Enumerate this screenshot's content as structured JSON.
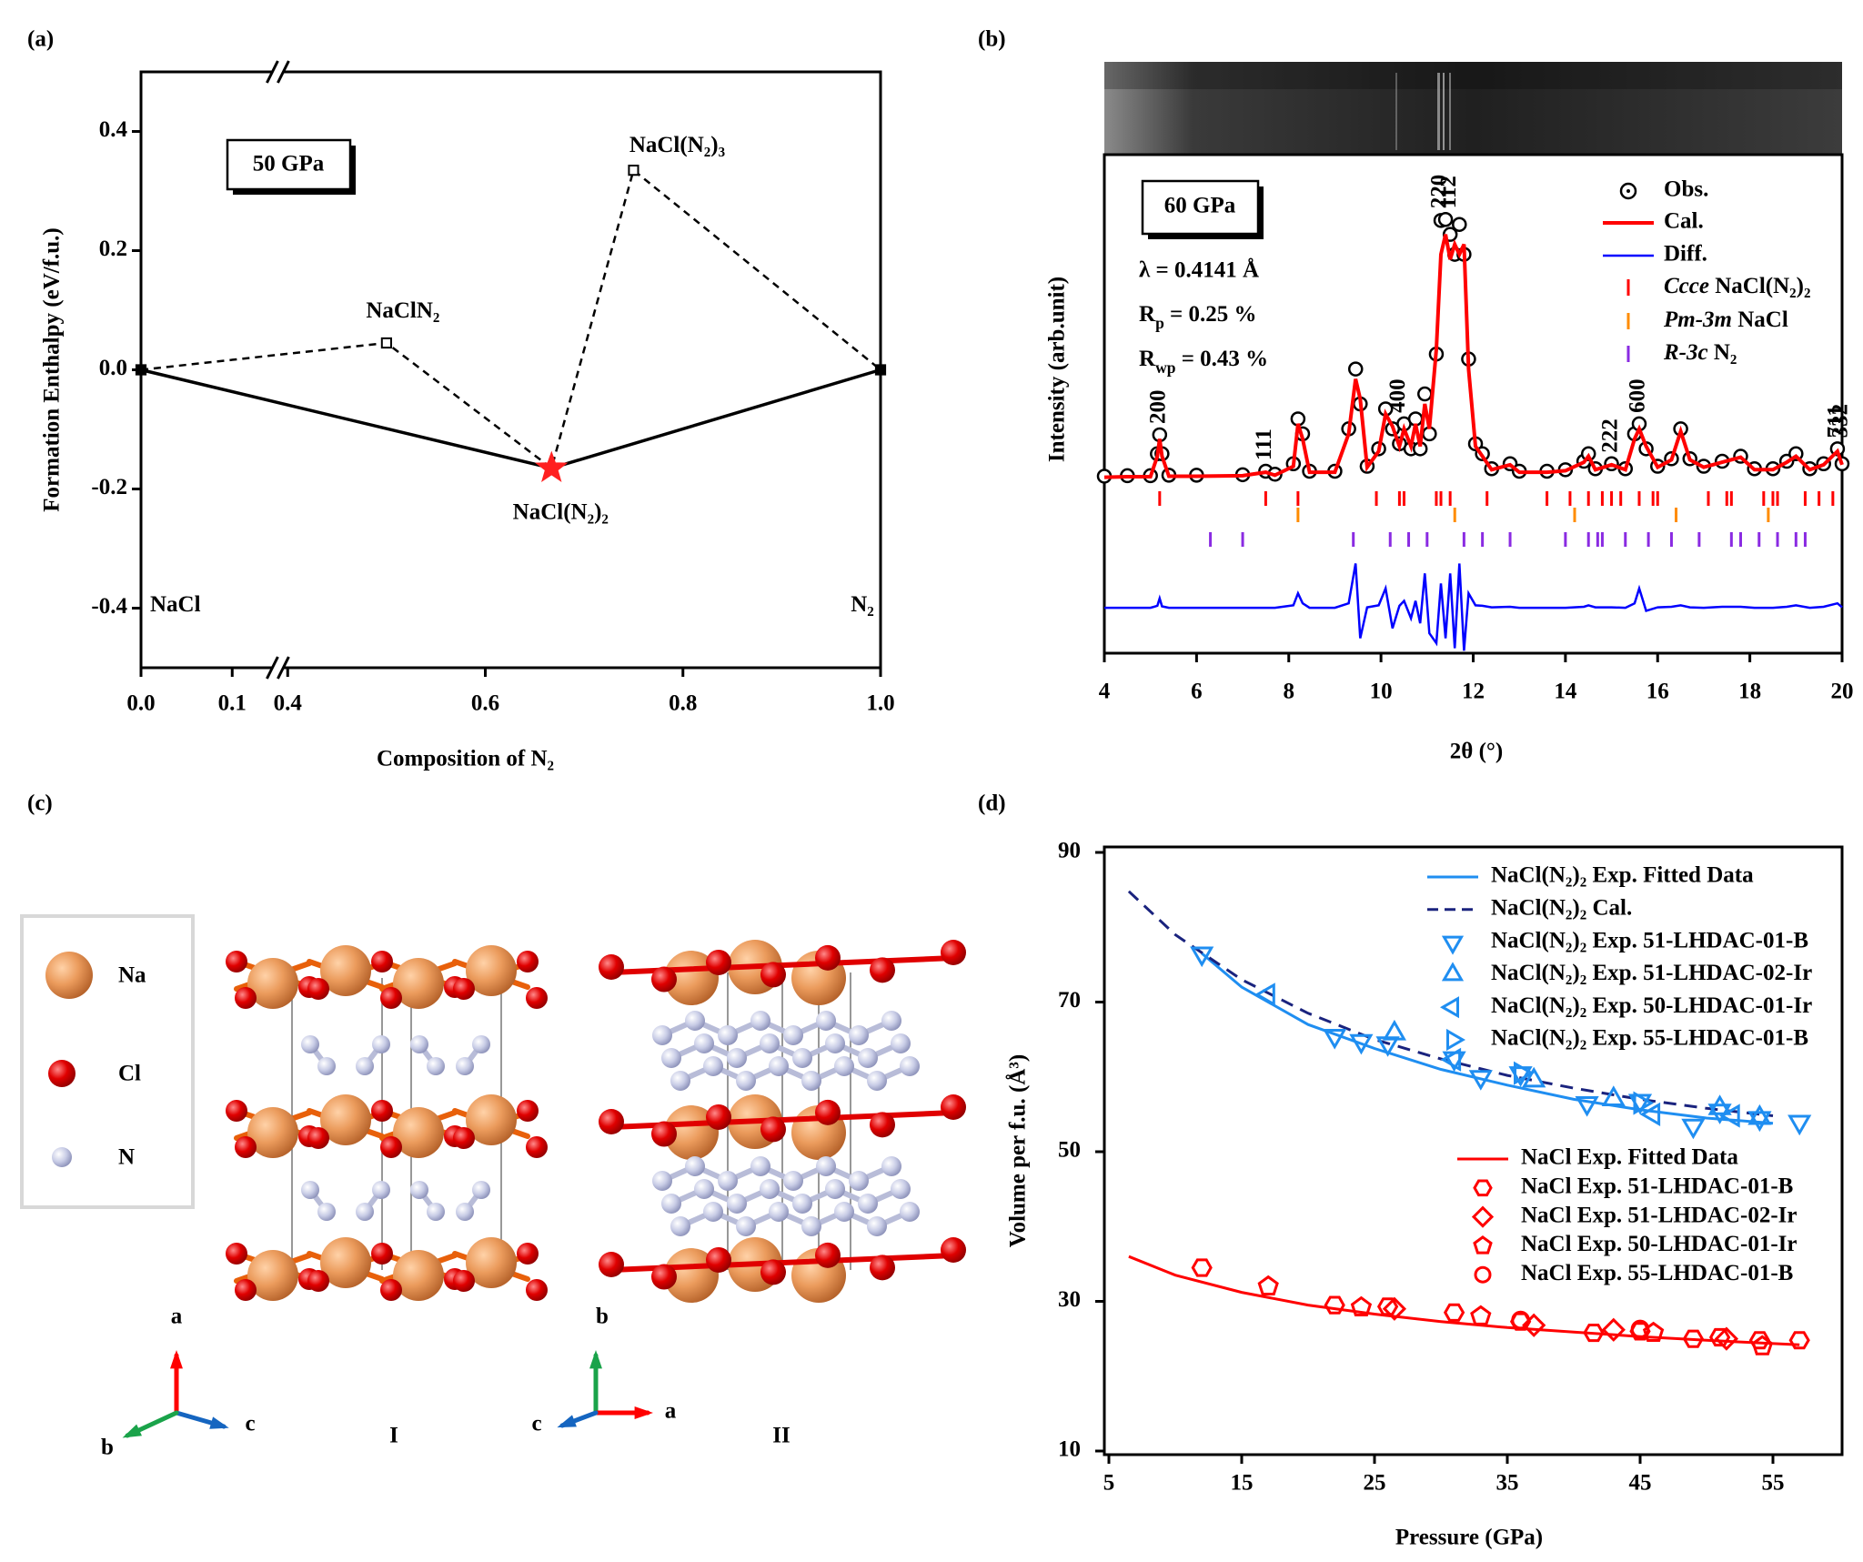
{
  "chart_data": [
    {
      "type": "hull",
      "panel_label": "(a)",
      "xlabel": "Composition of N₂",
      "ylabel": "Formation Enthalpy (eV/f.u.)",
      "xlim": [
        0,
        1
      ],
      "xbreak": [
        0.15,
        0.39
      ],
      "xticks": [
        {
          "value": 0,
          "label": "0.0"
        },
        {
          "value": 0.1,
          "label": "0.1"
        },
        {
          "value": 0.4,
          "label": "0.4"
        },
        {
          "value": 0.6,
          "label": "0.6"
        },
        {
          "value": 0.8,
          "label": "0.8"
        },
        {
          "value": 1,
          "label": "1.0"
        }
      ],
      "ylim": [
        -0.5,
        0.5
      ],
      "yticks": [
        {
          "value": -0.4,
          "label": "-0.4"
        },
        -0.2,
        {
          "value": 0,
          "label": "0.0"
        },
        0.2,
        0.4
      ],
      "annotations": [
        "50 GPa"
      ],
      "series": [
        {
          "color": "#000000",
          "style": "solid",
          "x": [
            0,
            0.667,
            1
          ],
          "values": [
            0,
            -0.165,
            0
          ]
        },
        {
          "color": "#000000",
          "style": "dashed",
          "x": [
            0,
            0.5,
            0.667,
            0.75,
            1
          ],
          "values": [
            0,
            0.045,
            -0.165,
            0.335,
            0
          ]
        }
      ],
      "points": {
        "x": [
          0,
          0.5,
          0.667,
          0.75,
          1
        ],
        "values": [
          0,
          0.045,
          -0.165,
          0.335,
          0
        ],
        "labels": [
          "NaCl",
          "NaClN₂",
          "NaCl(N₂)₂",
          "NaCl(N₂)₃",
          "N₂"
        ],
        "markers": [
          "filled-square",
          "square",
          "star",
          "square",
          "filled-square"
        ],
        "colors": [
          "#000000",
          "#000000",
          "#ff2020",
          "#000000",
          "#000000"
        ]
      }
    },
    {
      "type": "xrd",
      "panel_label": "(b)",
      "xlabel": "2θ (°)",
      "ylabel": "Intensity (arb.unit)",
      "xlim": [
        4,
        20
      ],
      "xticks": [
        4,
        6,
        8,
        10,
        12,
        14,
        16,
        18,
        20
      ],
      "ylim": [
        0,
        100
      ],
      "annotations": [
        "60 GPa",
        "λ = 0.4141 Å",
        "Rp = 0.25 %",
        "Rwp = 0.43 %"
      ],
      "x": [
        4.0,
        4.5,
        5.0,
        5.15,
        5.2,
        5.25,
        5.4,
        6.0,
        7.0,
        7.5,
        7.7,
        8.1,
        8.2,
        8.3,
        8.45,
        9.0,
        9.3,
        9.45,
        9.55,
        9.7,
        9.95,
        10.1,
        10.25,
        10.4,
        10.5,
        10.65,
        10.75,
        10.85,
        10.95,
        11.05,
        11.2,
        11.3,
        11.4,
        11.5,
        11.6,
        11.7,
        11.8,
        11.9,
        12.05,
        12.2,
        12.4,
        12.8,
        13.0,
        13.6,
        14.0,
        14.4,
        14.5,
        14.65,
        15.0,
        15.3,
        15.5,
        15.6,
        15.75,
        16.0,
        16.3,
        16.5,
        16.7,
        17.0,
        17.4,
        17.8,
        18.1,
        18.5,
        18.8,
        19.0,
        19.3,
        19.6,
        19.9,
        20.0
      ],
      "series": [
        {
          "name": "Obs.",
          "color": "#000000",
          "marker": "circle",
          "values": [
            35.5,
            35.6,
            35.6,
            40,
            43.8,
            40,
            35.7,
            35.7,
            35.8,
            36.5,
            35.9,
            38,
            47,
            44,
            36.5,
            36.5,
            45,
            57,
            50,
            37.5,
            41,
            49,
            45,
            42,
            46,
            41,
            47,
            41,
            52,
            44,
            60,
            86.8,
            87,
            84,
            80,
            86,
            80,
            59,
            42,
            40,
            37,
            38,
            36.5,
            36.5,
            36.8,
            38.5,
            40,
            37,
            38,
            37,
            44,
            46,
            41,
            37.5,
            39,
            45,
            39,
            37.5,
            38.5,
            39.5,
            37,
            37,
            38.5,
            40,
            37,
            38,
            41,
            38
          ]
        },
        {
          "name": "Cal.",
          "color": "#ff0000",
          "values": [
            35.3,
            35.4,
            35.4,
            39.5,
            43,
            39.5,
            35.5,
            35.5,
            35.6,
            36.3,
            35.7,
            37.5,
            46,
            43,
            36.3,
            36.3,
            44,
            55,
            51,
            37.3,
            40.5,
            48,
            45.5,
            41.5,
            45,
            41.5,
            46,
            41.5,
            50,
            45,
            61,
            80,
            84,
            79,
            82,
            80,
            82,
            57,
            41.5,
            39.5,
            36.8,
            37.8,
            36.3,
            36.3,
            36.6,
            38.3,
            39.5,
            36.8,
            37.8,
            36.8,
            43,
            45,
            41.5,
            37.3,
            38.8,
            44.5,
            38.8,
            37.3,
            38.3,
            39.3,
            36.8,
            36.8,
            38.3,
            39.5,
            36.8,
            37.8,
            40.5,
            37.8
          ]
        },
        {
          "name": "Diff.",
          "color": "#0000ff",
          "values": [
            9.1,
            9.1,
            9.1,
            9.5,
            11,
            9.4,
            9.1,
            9.1,
            9.1,
            9.1,
            9.1,
            9.6,
            12,
            10,
            9.1,
            9.1,
            10,
            18,
            3,
            9.2,
            9.6,
            13,
            5,
            9.5,
            10.5,
            7,
            10.5,
            6,
            16,
            4,
            2,
            14,
            3,
            16,
            1,
            18,
            0.5,
            12,
            9.6,
            9.5,
            9.2,
            9.3,
            9.1,
            9.1,
            9.1,
            9.3,
            9.6,
            9.2,
            9.2,
            9.1,
            10,
            13,
            8.5,
            9.2,
            9.3,
            9.6,
            9.2,
            9.1,
            9.3,
            9.3,
            9.1,
            9.1,
            9.3,
            9.6,
            9.1,
            9.3,
            10,
            9.2
          ]
        }
      ],
      "reflections": [
        {
          "name": "Ccce NaCl(N₂)₂",
          "color": "#ff0000",
          "positions": [
            5.2,
            7.5,
            8.2,
            9.9,
            10.4,
            10.5,
            11.2,
            11.3,
            11.5,
            12.3,
            13.6,
            14.1,
            14.5,
            14.8,
            15.0,
            15.2,
            15.6,
            15.9,
            16.0,
            17.1,
            17.5,
            17.6,
            18.3,
            18.5,
            18.6,
            19.2,
            19.5,
            19.8
          ]
        },
        {
          "name": "Pm-3m NaCl",
          "color": "#ff8c00",
          "positions": [
            8.2,
            11.6,
            14.2,
            16.4,
            18.4
          ]
        },
        {
          "name": "R-3c N₂",
          "color": "#8a2be2",
          "positions": [
            6.3,
            7.0,
            9.4,
            10.2,
            10.6,
            11.0,
            11.8,
            12.2,
            12.8,
            14.0,
            14.5,
            14.7,
            14.8,
            15.3,
            15.8,
            16.3,
            16.9,
            17.6,
            17.8,
            18.2,
            18.6,
            19.0,
            19.2
          ]
        }
      ],
      "peak_labels": [
        {
          "text": "200",
          "x": 5.2
        },
        {
          "text": "111",
          "x": 7.5
        },
        {
          "text": "400",
          "x": 10.4
        },
        {
          "text": "220",
          "x": 11.3
        },
        {
          "text": "112",
          "x": 11.5
        },
        {
          "text": "222",
          "x": 15.0
        },
        {
          "text": "600",
          "x": 15.6
        },
        {
          "text": "711",
          "x": 19.9
        },
        {
          "text": "332",
          "x": 20.0
        }
      ]
    },
    {
      "type": "scatter",
      "panel_label": "(d)",
      "xlabel": "Pressure (GPa)",
      "ylabel": "Volume per f.u. (Å³)",
      "xlim": [
        5,
        60
      ],
      "xticks": [
        5,
        15,
        25,
        35,
        45,
        55
      ],
      "ylim": [
        10,
        90
      ],
      "yticks": [
        10,
        30,
        50,
        70,
        90
      ],
      "series": [
        {
          "name": "NaCl(N₂)₂ Exp. Fitted Data",
          "color": "#1f8ef1",
          "style": "solid",
          "x": [
            12,
            15,
            20,
            25,
            30,
            35,
            40,
            45,
            50,
            55
          ],
          "values": [
            76.5,
            72,
            67,
            63.8,
            61,
            58.9,
            57,
            55.6,
            54.5,
            53.8
          ]
        },
        {
          "name": "NaCl(N₂)₂ Cal.",
          "color": "#1a237e",
          "style": "dashed",
          "x": [
            6.5,
            10,
            15,
            20,
            25,
            30,
            35,
            40,
            45,
            50,
            55
          ],
          "values": [
            84.8,
            79,
            73,
            68.5,
            65,
            62.4,
            60.2,
            58.5,
            57,
            55.8,
            54.8
          ]
        },
        {
          "name": "NaCl(N₂)₂ Exp. 51-LHDAC-01-B",
          "color": "#1f8ef1",
          "marker": "triangle-down",
          "x": [
            12,
            22,
            24,
            26,
            31,
            33,
            36,
            41,
            45,
            49,
            51,
            54,
            57
          ],
          "values": [
            76.5,
            65.5,
            64.8,
            64.5,
            62.5,
            60,
            60.5,
            56.5,
            56.8,
            53.5,
            55.5,
            54.5,
            54
          ]
        },
        {
          "name": "NaCl(N₂)₂ Exp. 51-LHDAC-02-Ir",
          "color": "#1f8ef1",
          "marker": "triangle-up",
          "x": [
            26.5,
            37,
            43,
            51,
            54
          ],
          "values": [
            65.8,
            59.5,
            57,
            55.8,
            54.5
          ]
        },
        {
          "name": "NaCl(N₂)₂ Exp. 50-LHDAC-01-Ir",
          "color": "#1f8ef1",
          "marker": "triangle-left",
          "x": [
            17,
            31,
            46,
            52
          ],
          "values": [
            71,
            62.3,
            55,
            54.8
          ]
        },
        {
          "name": "NaCl(N₂)₂ Exp. 55-LHDAC-01-B",
          "color": "#1f8ef1",
          "marker": "triangle-right",
          "x": [
            36,
            45
          ],
          "values": [
            60.5,
            56.5
          ]
        },
        {
          "name": "NaCl Exp. Fitted Data",
          "color": "#ff0000",
          "style": "solid",
          "x": [
            6.5,
            10,
            15,
            20,
            25,
            30,
            35,
            40,
            45,
            50,
            57
          ],
          "values": [
            36,
            33.5,
            31.2,
            29.5,
            28.3,
            27.3,
            26.5,
            25.9,
            25.3,
            24.8,
            24.2
          ]
        },
        {
          "name": "NaCl Exp. 51-LHDAC-01-B",
          "color": "#ff0000",
          "marker": "hexagon",
          "x": [
            12,
            22,
            26,
            31,
            36,
            41.5,
            45,
            49,
            51,
            54,
            57
          ],
          "values": [
            34.5,
            29.5,
            29.3,
            28.5,
            27.3,
            25.8,
            26,
            25,
            25.2,
            24.8,
            24.8
          ]
        },
        {
          "name": "NaCl Exp. 51-LHDAC-02-Ir",
          "color": "#ff0000",
          "marker": "diamond",
          "x": [
            26.5,
            37,
            43,
            51.5
          ],
          "values": [
            29,
            26.8,
            26.2,
            25
          ]
        },
        {
          "name": "NaCl Exp. 50-LHDAC-01-Ir",
          "color": "#ff0000",
          "marker": "pentagon",
          "x": [
            17,
            24,
            33,
            46,
            54.2
          ],
          "values": [
            32,
            29.2,
            28,
            25.8,
            24
          ]
        },
        {
          "name": "NaCl Exp. 55-LHDAC-01-B",
          "color": "#ff0000",
          "marker": "circle",
          "x": [
            36,
            45
          ],
          "values": [
            27.5,
            26.3
          ]
        }
      ]
    }
  ],
  "structure_panel": {
    "panel_label": "(c)",
    "legend": [
      "Na",
      "Cl",
      "N"
    ],
    "axes_I": [
      "a",
      "b",
      "c"
    ],
    "axes_II": [
      "b",
      "c",
      "a"
    ],
    "phases": [
      "I",
      "II"
    ]
  }
}
